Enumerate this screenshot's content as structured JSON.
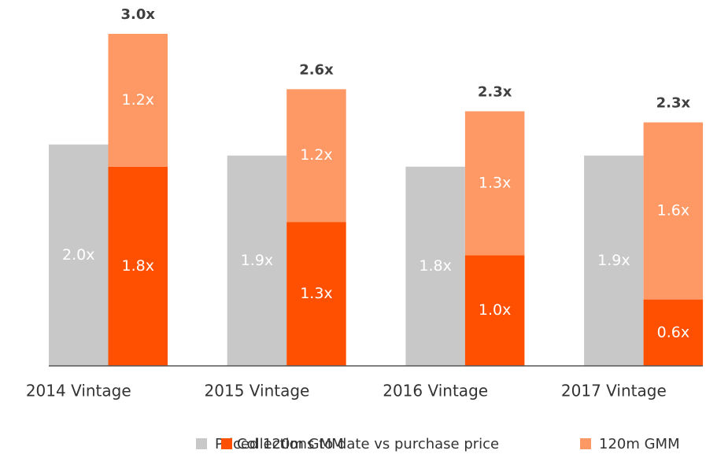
{
  "chart_data": {
    "type": "bar",
    "categories": [
      "2014 Vintage",
      "2015 Vintage",
      "2016 Vintage",
      "2017 Vintage"
    ],
    "series": [
      {
        "name": "Priced 120m GMM",
        "color": "#c8c8c8",
        "values": [
          2.0,
          1.9,
          1.8,
          1.9
        ],
        "value_labels": [
          "2.0x",
          "1.9x",
          "1.8x",
          "1.9x"
        ]
      },
      {
        "name": "Collections to date vs purchase price",
        "color": "#fe5000",
        "values": [
          1.8,
          1.3,
          1.0,
          0.6
        ],
        "value_labels": [
          "1.8x",
          "1.3x",
          "1.0x",
          "0.6x"
        ]
      },
      {
        "name": "120m GMM",
        "color": "#fe9966",
        "values": [
          1.2,
          1.2,
          1.3,
          1.6
        ],
        "value_labels": [
          "1.2x",
          "1.2x",
          "1.3x",
          "1.6x"
        ]
      }
    ],
    "totals": [
      3.0,
      2.6,
      2.3,
      2.3
    ],
    "total_labels": [
      "3.0x",
      "2.6x",
      "2.3x",
      "2.3x"
    ]
  }
}
